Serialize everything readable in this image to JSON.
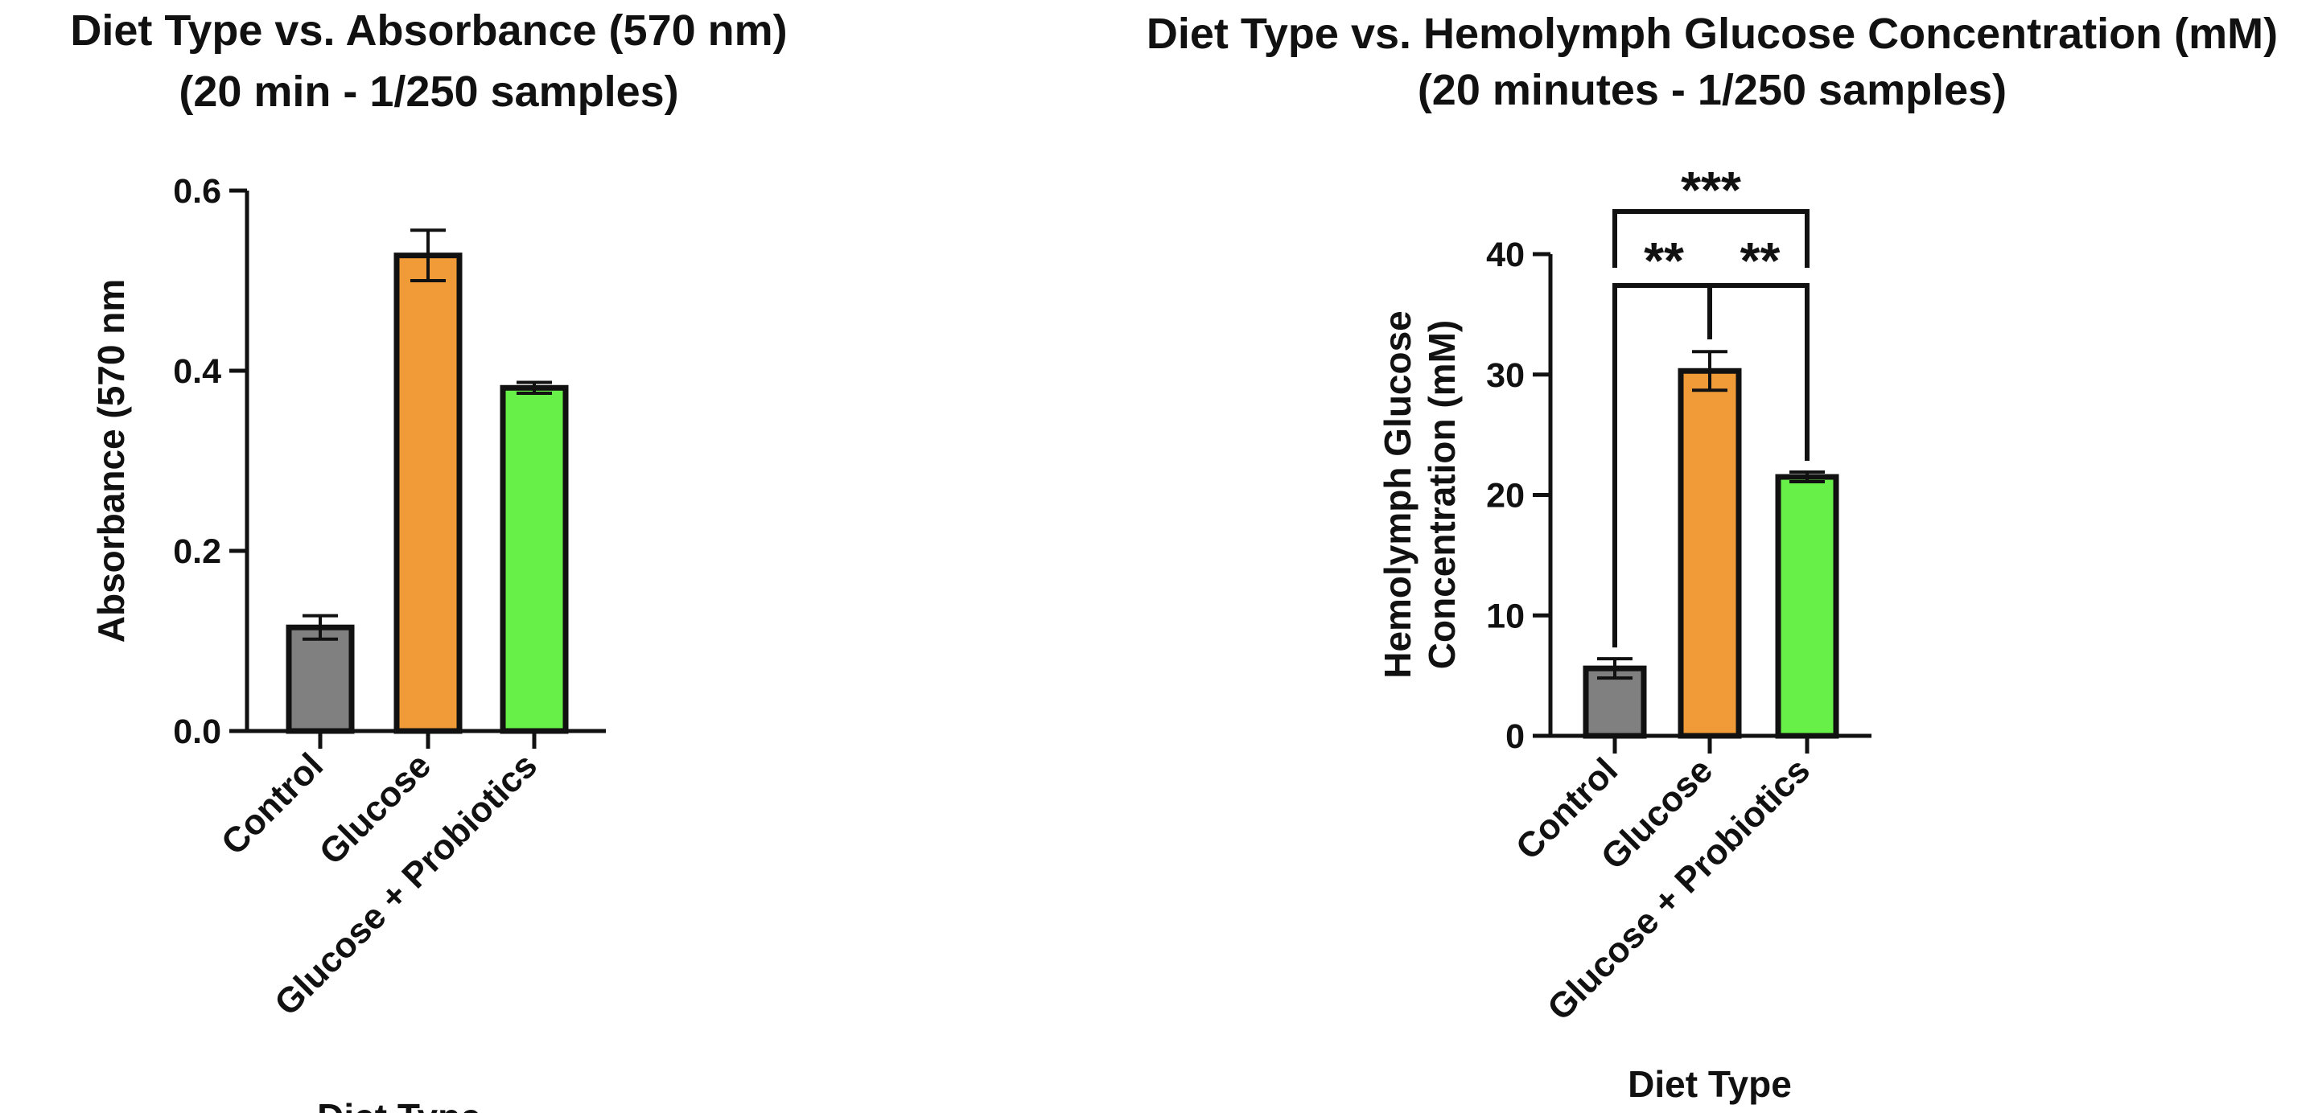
{
  "chart_data": [
    {
      "type": "bar",
      "title": "Diet Type vs. Absorbance (570 nm)",
      "subtitle": "(20 min - 1/250 samples)",
      "xlabel": "Diet Type",
      "ylabel": "Absorbance (570 nm",
      "categories": [
        "Control",
        "Glucose",
        "Glucose + Probiotics"
      ],
      "values": [
        0.115,
        0.528,
        0.381
      ],
      "errors": [
        0.013,
        0.028,
        0.006
      ],
      "colors": [
        "#808080",
        "#F09A38",
        "#66F048"
      ],
      "ylim": [
        0,
        0.6
      ],
      "yticks": [
        "0.0",
        "0.2",
        "0.4",
        "0.6"
      ],
      "grid": false,
      "legend": "none"
    },
    {
      "type": "bar",
      "title": "Diet Type vs. Hemolymph Glucose Concentration (mM)",
      "subtitle": "(20 minutes - 1/250 samples)",
      "xlabel": "Diet Type",
      "ylabel_line1": "Hemolymph Glucose",
      "ylabel_line2": "Concentration (mM)",
      "categories": [
        "Control",
        "Glucose",
        "Glucose + Probiotics"
      ],
      "values": [
        5.6,
        30.3,
        21.5
      ],
      "errors": [
        0.8,
        1.6,
        0.4
      ],
      "colors": [
        "#808080",
        "#F09A38",
        "#66F048"
      ],
      "ylim": [
        0,
        40
      ],
      "yticks": [
        "0",
        "10",
        "20",
        "30",
        "40"
      ],
      "grid": false,
      "legend": "none",
      "significance": [
        {
          "pair": [
            "Control",
            "Glucose + Probiotics"
          ],
          "label": "***"
        },
        {
          "pair": [
            "Control",
            "Glucose"
          ],
          "label": "**"
        },
        {
          "pair": [
            "Glucose",
            "Glucose + Probiotics"
          ],
          "label": "**"
        }
      ]
    }
  ]
}
